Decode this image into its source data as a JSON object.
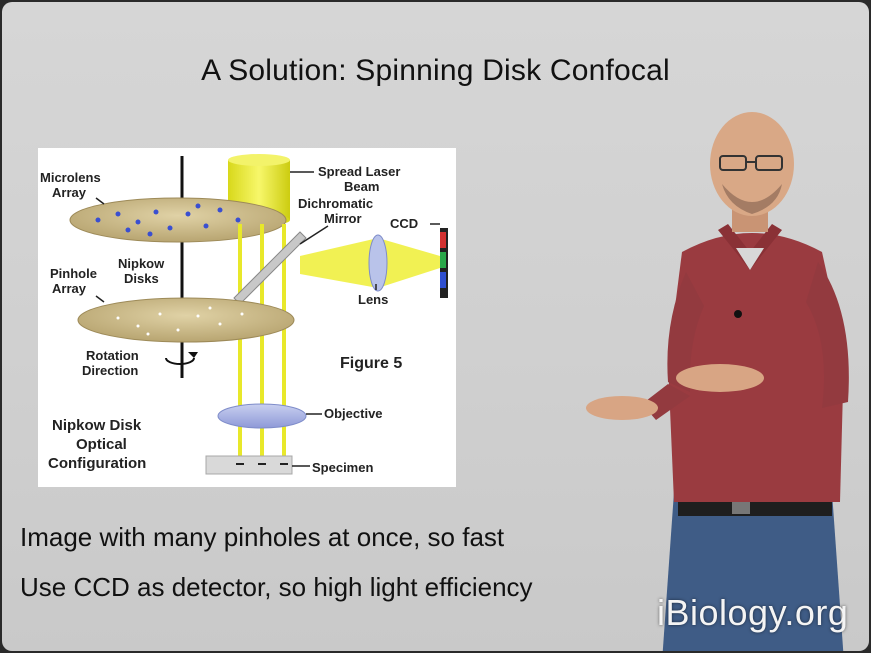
{
  "slide": {
    "title": "A Solution: Spinning Disk Confocal",
    "bullets": [
      "Image with many pinholes at once, so fast",
      "Use CCD as detector, so high light efficiency"
    ]
  },
  "figure": {
    "labels": {
      "microlens_array": [
        "Microlens",
        "Array"
      ],
      "pinhole_array": [
        "Pinhole",
        "Array"
      ],
      "nipkow_disks": [
        "Nipkow",
        "Disks"
      ],
      "rotation_direction": [
        "Rotation",
        "Direction"
      ],
      "spread_laser_beam": [
        "Spread Laser",
        "Beam"
      ],
      "dichromatic_mirror": [
        "Dichromatic",
        "Mirror"
      ],
      "ccd": "CCD",
      "lens": "Lens",
      "figure_number": "Figure 5",
      "objective": "Objective",
      "specimen": "Specimen",
      "configuration": [
        "Nipkow Disk",
        "Optical",
        "Configuration"
      ]
    }
  },
  "watermark": "iBiology.org",
  "colors": {
    "slide_bg": "#d2d2d2",
    "laser_yellow": "#ecec30",
    "disk_tan": "#cdbb86",
    "shirt_red": "#9a3b40",
    "jeans_blue": "#3f5c86"
  }
}
